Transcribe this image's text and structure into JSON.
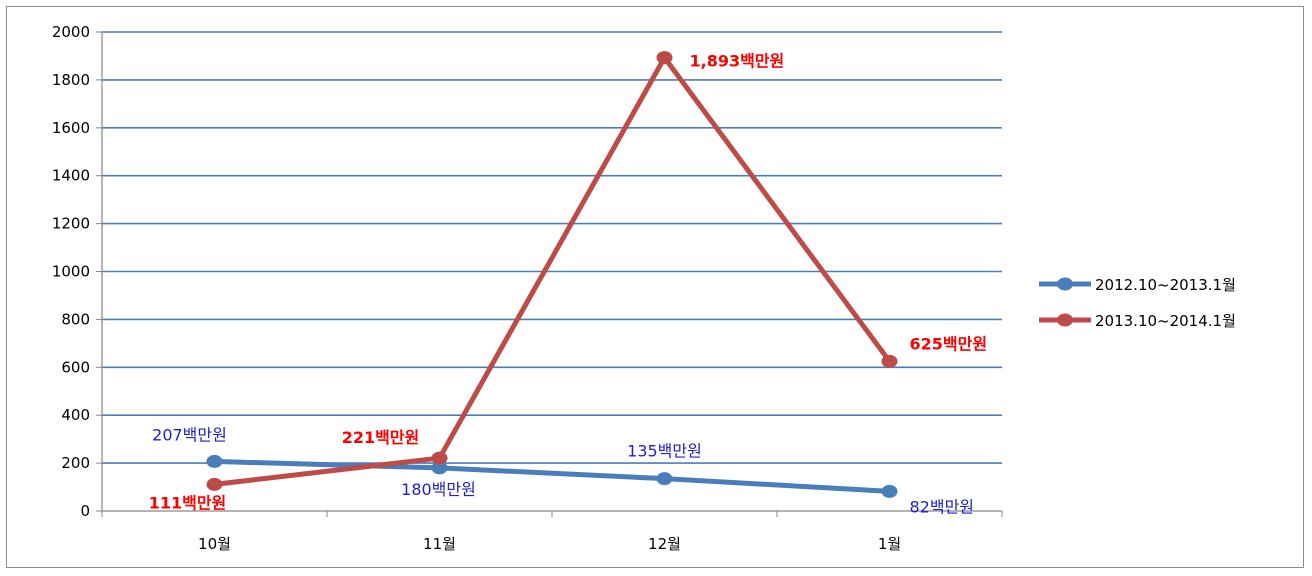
{
  "chart_data": {
    "type": "line",
    "categories": [
      "10월",
      "11월",
      "12월",
      "1월"
    ],
    "ylim": [
      0,
      2000
    ],
    "yticks": [
      0,
      200,
      400,
      600,
      800,
      1000,
      1200,
      1400,
      1600,
      1800,
      2000
    ],
    "grid": true,
    "legend_position": "right",
    "series": [
      {
        "name": "2012.10~2013.1월",
        "color": "#4a7ebb",
        "values": [
          207,
          180,
          135,
          82
        ],
        "labels": [
          "207백만원",
          "180백만원",
          "135백만원",
          "82백만원"
        ],
        "label_color": "#1f1fcc"
      },
      {
        "name": "2013.10~2014.1월",
        "color": "#be4b48",
        "values": [
          111,
          221,
          1893,
          625
        ],
        "labels": [
          "111백만원",
          "221백만원",
          "1,893백만원",
          "625백만원"
        ],
        "label_color": "#ff0000"
      }
    ]
  }
}
